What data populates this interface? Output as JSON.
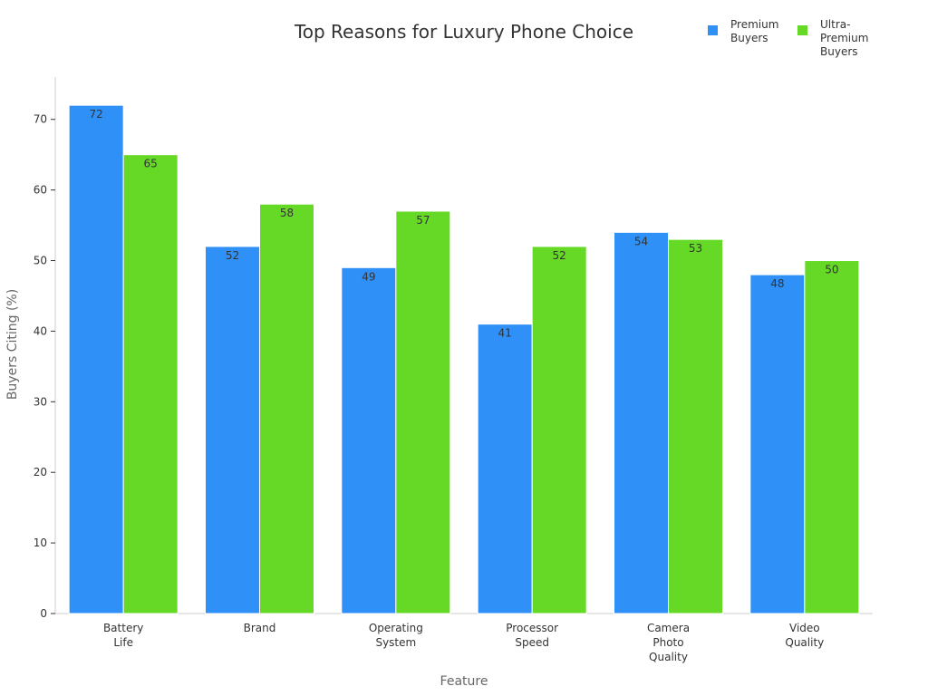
{
  "chart_data": {
    "type": "bar",
    "title": "Top Reasons for Luxury Phone Choice",
    "xlabel": "Feature",
    "ylabel": "Buyers Citing (%)",
    "categories": [
      [
        "Battery",
        "Life"
      ],
      [
        "Brand"
      ],
      [
        "Operating",
        "System"
      ],
      [
        "Processor",
        "Speed"
      ],
      [
        "Camera",
        "Photo",
        "Quality"
      ],
      [
        "Video",
        "Quality"
      ]
    ],
    "series": [
      {
        "name": [
          "Premium",
          "Buyers"
        ],
        "color": "#2f90f7",
        "values": [
          72,
          52,
          49,
          41,
          54,
          48
        ]
      },
      {
        "name": [
          "Ultra-",
          "Premium",
          "Buyers"
        ],
        "color": "#66d927",
        "values": [
          65,
          58,
          57,
          52,
          53,
          50
        ]
      }
    ],
    "ylim": [
      0,
      76
    ],
    "yticks": [
      0,
      10,
      20,
      30,
      40,
      50,
      60,
      70
    ],
    "grid": false,
    "legend_position": "top-right",
    "data_labels": true
  }
}
